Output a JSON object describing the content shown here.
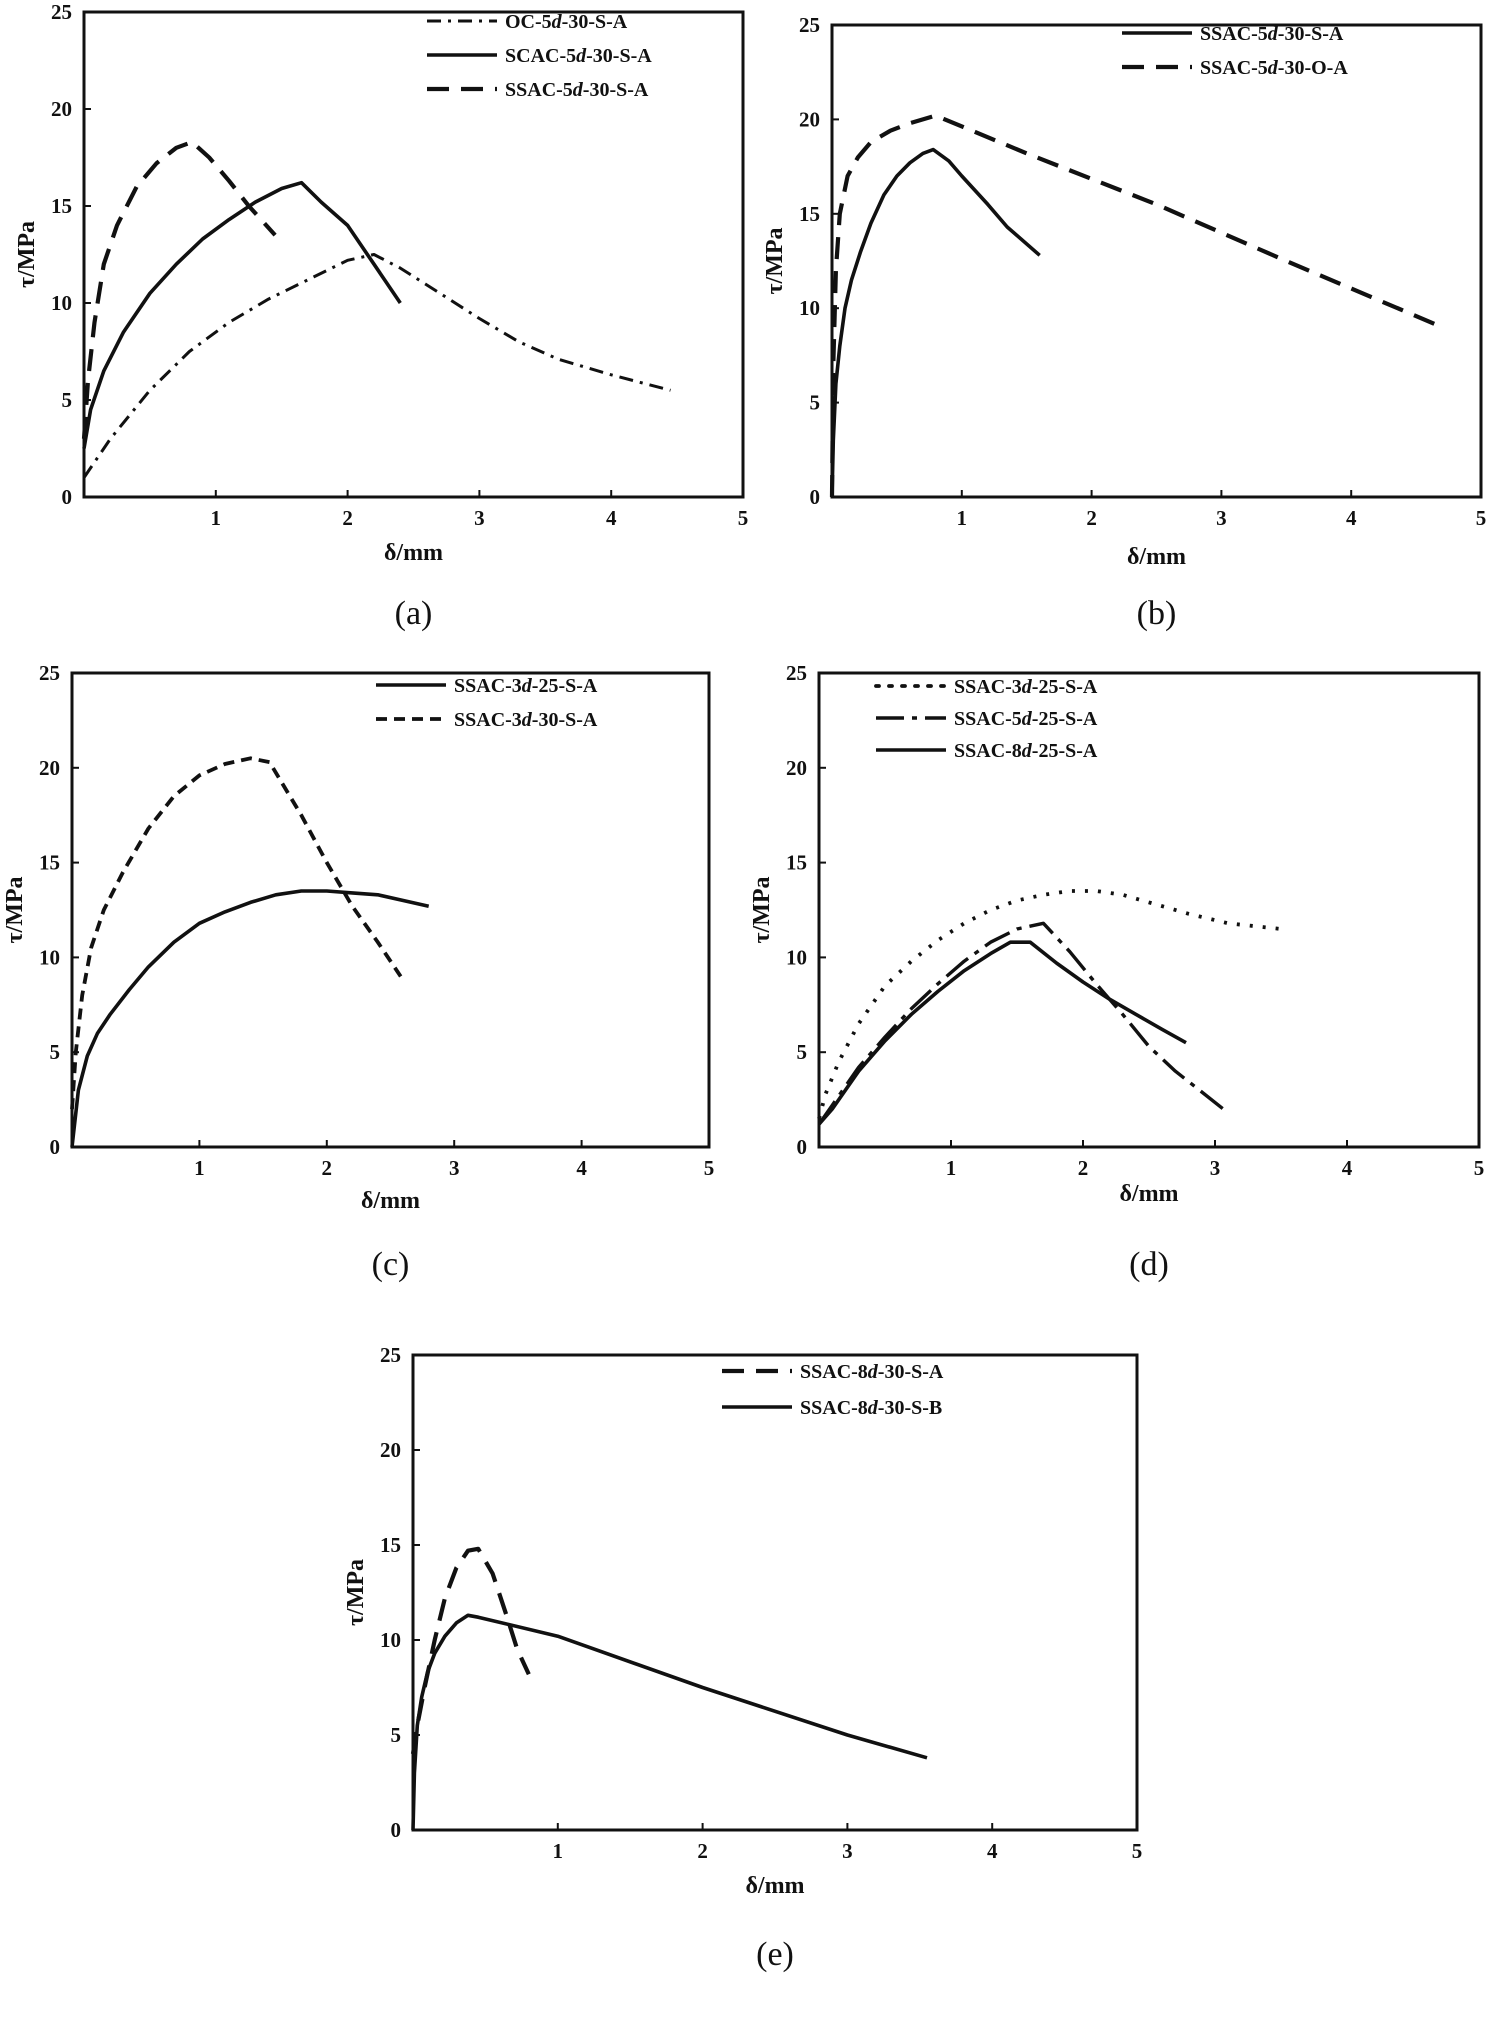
{
  "chart_data": [
    {
      "type": "line",
      "panel_label": "(a)",
      "xlabel": "δ/mm",
      "ylabel": "τ/MPa",
      "xlim": [
        0,
        5
      ],
      "ylim": [
        0,
        25
      ],
      "xticks": [
        1,
        2,
        3,
        4,
        5
      ],
      "yticks": [
        0,
        5,
        10,
        15,
        20,
        25
      ],
      "legend_position": "top-right",
      "series": [
        {
          "name": "OC-5d-30-S-A",
          "style": "dashdot",
          "x": [
            0,
            0.2,
            0.5,
            0.8,
            1.1,
            1.4,
            1.7,
            2.0,
            2.2,
            2.4,
            2.7,
            3.0,
            3.3,
            3.6,
            4.0,
            4.45
          ],
          "y": [
            1,
            3,
            5.5,
            7.5,
            9,
            10.2,
            11.2,
            12.2,
            12.5,
            11.8,
            10.5,
            9.2,
            8,
            7.1,
            6.3,
            5.5
          ]
        },
        {
          "name": "SCAC-5d-30-S-A",
          "style": "solid",
          "x": [
            0,
            0.05,
            0.15,
            0.3,
            0.5,
            0.7,
            0.9,
            1.1,
            1.3,
            1.5,
            1.65,
            1.8,
            2.0,
            2.2,
            2.4
          ],
          "y": [
            2.5,
            4.5,
            6.5,
            8.5,
            10.5,
            12,
            13.3,
            14.3,
            15.2,
            15.9,
            16.2,
            15.2,
            14,
            12,
            10
          ]
        },
        {
          "name": "SSAC-5d-30-S-A",
          "style": "dashed",
          "x": [
            0,
            0.03,
            0.08,
            0.15,
            0.25,
            0.4,
            0.55,
            0.7,
            0.82,
            0.95,
            1.1,
            1.25,
            1.45
          ],
          "y": [
            3,
            6,
            9,
            12,
            14,
            16,
            17.2,
            18,
            18.3,
            17.5,
            16.3,
            15,
            13.5
          ]
        }
      ]
    },
    {
      "type": "line",
      "panel_label": "(b)",
      "xlabel": "δ/mm",
      "ylabel": "τ/MPa",
      "xlim": [
        0,
        5
      ],
      "ylim": [
        0,
        25
      ],
      "xticks": [
        1,
        2,
        3,
        4,
        5
      ],
      "yticks": [
        0,
        5,
        10,
        15,
        20,
        25
      ],
      "legend_position": "top-right",
      "series": [
        {
          "name": "SSAC-5d-30-S-A",
          "style": "solid",
          "x": [
            0,
            0.01,
            0.03,
            0.06,
            0.1,
            0.15,
            0.22,
            0.3,
            0.4,
            0.5,
            0.6,
            0.7,
            0.78,
            0.9,
            1.0,
            1.2,
            1.35,
            1.6
          ],
          "y": [
            0,
            3,
            6,
            8,
            10,
            11.5,
            13,
            14.5,
            16,
            17,
            17.7,
            18.2,
            18.4,
            17.8,
            17,
            15.5,
            14.3,
            12.8
          ]
        },
        {
          "name": "SSAC-5d-30-O-A",
          "style": "dashed",
          "x": [
            0,
            0.01,
            0.03,
            0.06,
            0.12,
            0.2,
            0.3,
            0.45,
            0.6,
            0.8,
            1.5,
            2.5,
            3.5,
            4.7
          ],
          "y": [
            0,
            7,
            12,
            15,
            17,
            18,
            18.8,
            19.4,
            19.8,
            20.2,
            18.2,
            15.5,
            12.5,
            9
          ]
        }
      ]
    },
    {
      "type": "line",
      "panel_label": "(c)",
      "xlabel": "δ/mm",
      "ylabel": "τ/MPa",
      "xlim": [
        0,
        5
      ],
      "ylim": [
        0,
        25
      ],
      "xticks": [
        1,
        2,
        3,
        4,
        5
      ],
      "yticks": [
        0,
        5,
        10,
        15,
        20,
        25
      ],
      "legend_position": "top-right",
      "series": [
        {
          "name": "SSAC-3d-25-S-A",
          "style": "solid",
          "x": [
            0,
            0.05,
            0.12,
            0.2,
            0.3,
            0.45,
            0.6,
            0.8,
            1.0,
            1.2,
            1.4,
            1.6,
            1.8,
            2.0,
            2.2,
            2.4,
            2.6,
            2.8
          ],
          "y": [
            0,
            3,
            4.8,
            6,
            7,
            8.3,
            9.5,
            10.8,
            11.8,
            12.4,
            12.9,
            13.3,
            13.5,
            13.5,
            13.4,
            13.3,
            13,
            12.7
          ]
        },
        {
          "name": "SSAC-3d-30-S-A",
          "style": "shortdash",
          "x": [
            0,
            0.03,
            0.08,
            0.15,
            0.25,
            0.4,
            0.6,
            0.8,
            1.0,
            1.2,
            1.4,
            1.55,
            1.8,
            2.0,
            2.2,
            2.4,
            2.58
          ],
          "y": [
            2,
            5,
            8,
            10.5,
            12.5,
            14.5,
            16.8,
            18.5,
            19.6,
            20.2,
            20.5,
            20.3,
            17.5,
            15,
            12.7,
            10.8,
            9
          ]
        }
      ]
    },
    {
      "type": "line",
      "panel_label": "(d)",
      "xlabel": "δ/mm",
      "ylabel": "τ/MPa",
      "xlim": [
        0,
        5
      ],
      "ylim": [
        0,
        25
      ],
      "xticks": [
        1,
        2,
        3,
        4,
        5
      ],
      "yticks": [
        0,
        5,
        10,
        15,
        20,
        25
      ],
      "legend_position": "top-right",
      "series": [
        {
          "name": "SSAC-3d-25-S-A",
          "style": "dotted",
          "x": [
            0,
            0.05,
            0.15,
            0.3,
            0.5,
            0.7,
            0.9,
            1.1,
            1.3,
            1.5,
            1.7,
            1.9,
            2.1,
            2.3,
            2.5,
            2.8,
            3.1,
            3.5
          ],
          "y": [
            1.5,
            2.8,
            4.5,
            6.5,
            8.5,
            9.8,
            10.9,
            11.8,
            12.5,
            13,
            13.3,
            13.5,
            13.5,
            13.3,
            12.9,
            12.3,
            11.8,
            11.5
          ]
        },
        {
          "name": "SSAC-5d-25-S-A",
          "style": "longdashdot",
          "x": [
            0,
            0.1,
            0.3,
            0.5,
            0.7,
            0.9,
            1.1,
            1.3,
            1.5,
            1.7,
            1.9,
            2.1,
            2.3,
            2.5,
            2.7,
            2.9,
            3.1
          ],
          "y": [
            1.2,
            2.2,
            4.2,
            5.8,
            7.3,
            8.6,
            9.8,
            10.8,
            11.5,
            11.8,
            10.3,
            8.6,
            7,
            5.3,
            4,
            2.9,
            1.8
          ]
        },
        {
          "name": "SSAC-8d-25-S-A",
          "style": "solid",
          "x": [
            0,
            0.1,
            0.3,
            0.5,
            0.7,
            0.9,
            1.1,
            1.3,
            1.45,
            1.6,
            1.8,
            2.0,
            2.2,
            2.4,
            2.6,
            2.78
          ],
          "y": [
            1.2,
            2,
            4,
            5.6,
            7,
            8.2,
            9.3,
            10.2,
            10.8,
            10.8,
            9.7,
            8.7,
            7.8,
            7,
            6.2,
            5.5
          ]
        }
      ]
    },
    {
      "type": "line",
      "panel_label": "(e)",
      "xlabel": "δ/mm",
      "ylabel": "τ/MPa",
      "xlim": [
        0,
        5
      ],
      "ylim": [
        0,
        25
      ],
      "xticks": [
        1,
        2,
        3,
        4,
        5
      ],
      "yticks": [
        0,
        5,
        10,
        15,
        20,
        25
      ],
      "legend_position": "top-right",
      "series": [
        {
          "name": "SSAC-8d-30-S-A",
          "style": "dashed",
          "x": [
            0,
            0.03,
            0.08,
            0.15,
            0.22,
            0.3,
            0.38,
            0.45,
            0.55,
            0.65,
            0.72,
            0.8
          ],
          "y": [
            4,
            5.5,
            7.5,
            10,
            12.2,
            13.8,
            14.7,
            14.8,
            13.5,
            11.2,
            9.5,
            8.2
          ]
        },
        {
          "name": "SSAC-8d-30-S-B",
          "style": "solid",
          "x": [
            0,
            0.01,
            0.03,
            0.06,
            0.1,
            0.15,
            0.22,
            0.3,
            0.38,
            0.45,
            1.0,
            2.0,
            3.0,
            3.55
          ],
          "y": [
            0,
            3,
            5.5,
            7,
            8.3,
            9.3,
            10.2,
            10.9,
            11.3,
            11.2,
            10.2,
            7.5,
            5,
            3.8
          ]
        }
      ]
    }
  ]
}
